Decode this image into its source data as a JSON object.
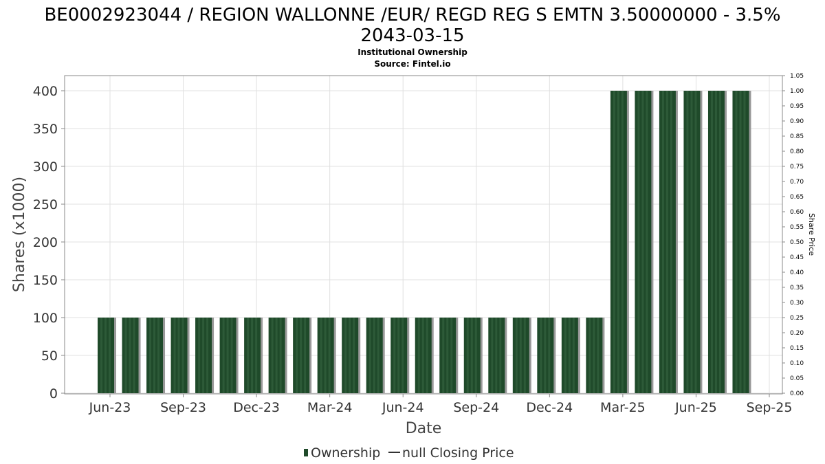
{
  "chart_data": {
    "type": "bar",
    "title": "BE0002923044 / REGION WALLONNE /EUR/ REGD REG S EMTN 3.50000000 - 3.5%",
    "title_line2": "2043-03-15",
    "subtitle": "Institutional Ownership",
    "source": "Source: Fintel.io",
    "xlabel": "Date",
    "ylabel": "Shares (x1000)",
    "y2label": "Share Price",
    "ylim": [
      0,
      420
    ],
    "y2lim": [
      0,
      1.05
    ],
    "yticks": [
      0,
      50,
      100,
      150,
      200,
      250,
      300,
      350,
      400
    ],
    "y2ticks": [
      "0.00",
      "0.05",
      "0.10",
      "0.15",
      "0.20",
      "0.25",
      "0.30",
      "0.35",
      "0.40",
      "0.45",
      "0.50",
      "0.55",
      "0.60",
      "0.65",
      "0.70",
      "0.75",
      "0.80",
      "0.85",
      "0.90",
      "0.95",
      "1.00",
      "1.05"
    ],
    "xticks": [
      "Jun-23",
      "Sep-23",
      "Dec-23",
      "Mar-24",
      "Jun-24",
      "Sep-24",
      "Dec-24",
      "Mar-25",
      "Jun-25",
      "Sep-25"
    ],
    "categories": [
      "2023-06",
      "2023-07",
      "2023-08",
      "2023-09",
      "2023-10",
      "2023-11",
      "2023-12",
      "2024-01",
      "2024-02",
      "2024-03",
      "2024-04",
      "2024-05",
      "2024-06",
      "2024-07",
      "2024-08",
      "2024-09",
      "2024-10",
      "2024-11",
      "2024-12",
      "2025-01",
      "2025-02",
      "2025-03",
      "2025-04",
      "2025-05",
      "2025-06",
      "2025-07",
      "2025-08"
    ],
    "series": [
      {
        "name": "Ownership",
        "values": [
          100,
          100,
          100,
          100,
          100,
          100,
          100,
          100,
          100,
          100,
          100,
          100,
          100,
          100,
          100,
          100,
          100,
          100,
          100,
          100,
          100,
          400,
          400,
          400,
          400,
          400,
          400
        ]
      }
    ],
    "legend": [
      "Ownership",
      "null Closing Price"
    ],
    "legend_position": "bottom",
    "grid": true,
    "colors": {
      "bar": "#1f4a2a",
      "bar_shadow": "#999999",
      "grid": "#e0e0e0"
    }
  }
}
